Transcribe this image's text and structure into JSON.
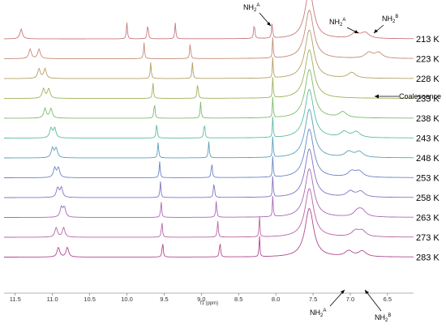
{
  "chart_data": {
    "type": "line",
    "title": "",
    "xlabel": "f1 (ppm)",
    "xlim": [
      11.65,
      6.15
    ],
    "x_reversed": true,
    "x_ticks": [
      "11.5",
      "11.0",
      "10.5",
      "10.0",
      "9.5",
      "9.0",
      "8.5",
      "8.0",
      "7.5",
      "7.0",
      "6.5"
    ],
    "temperatures": [
      "213 K",
      "223 K",
      "228 K",
      "233 K",
      "238 K",
      "243 K",
      "248 K",
      "253 K",
      "258 K",
      "263 K",
      "273 K",
      "283 K"
    ],
    "series_colors": [
      "#c8787c",
      "#c48a78",
      "#b4a064",
      "#9cb45a",
      "#7cbc6c",
      "#5cbca0",
      "#5aa0bc",
      "#6a84c4",
      "#8472c4",
      "#a868b8",
      "#b864a4",
      "#b04890"
    ],
    "peaks": [
      {
        "label": "213 K",
        "shifts": [
          11.42,
          10.0,
          9.72,
          9.35,
          8.29,
          8.05,
          7.55,
          6.93,
          6.8
        ]
      },
      {
        "label": "223 K",
        "shifts": [
          11.3,
          11.18,
          9.77,
          9.15,
          8.04,
          7.55,
          6.75,
          6.62
        ]
      },
      {
        "label": "228 K",
        "shifts": [
          11.18,
          11.1,
          9.68,
          9.12,
          8.04,
          7.55,
          6.98
        ]
      },
      {
        "label": "233 K",
        "shifts": [
          11.12,
          11.05,
          9.65,
          9.05,
          8.04,
          7.55
        ]
      },
      {
        "label": "238 K",
        "shifts": [
          11.1,
          11.02,
          9.63,
          9.01,
          8.04,
          7.55,
          7.1
        ]
      },
      {
        "label": "243 K",
        "shifts": [
          11.02,
          10.97,
          9.6,
          8.96,
          8.04,
          7.55,
          7.08,
          6.92
        ]
      },
      {
        "label": "248 K",
        "shifts": [
          11.0,
          10.95,
          9.58,
          8.9,
          8.04,
          7.55,
          7.02,
          6.88
        ]
      },
      {
        "label": "253 K",
        "shifts": [
          10.97,
          10.92,
          9.56,
          8.86,
          8.04,
          7.55,
          6.98,
          6.88
        ]
      },
      {
        "label": "258 K",
        "shifts": [
          10.93,
          10.88,
          9.55,
          8.83,
          8.04,
          7.55,
          7.0,
          6.86
        ]
      },
      {
        "label": "263 K",
        "shifts": [
          10.88,
          10.84,
          9.54,
          8.8,
          8.04,
          7.55,
          6.9,
          6.84
        ]
      },
      {
        "label": "273 K",
        "shifts": [
          10.95,
          10.85,
          9.53,
          8.78,
          8.22,
          7.55,
          6.93,
          6.84
        ]
      },
      {
        "label": "283 K",
        "shifts": [
          10.92,
          10.8,
          9.52,
          8.75,
          8.22,
          7.55,
          7.02,
          6.84
        ]
      }
    ]
  },
  "annotations": {
    "nh2a_top": {
      "main": "NH",
      "sub": "2",
      "sup": "A"
    },
    "nh2a_right": {
      "main": "NH",
      "sub": "2",
      "sup": "A"
    },
    "nh2b_right": {
      "main": "NH",
      "sub": "2",
      "sup": "B"
    },
    "coalescence": "Coalescence",
    "nh2a_bottom": {
      "main": "NH",
      "sub": "2",
      "sup": "A"
    },
    "nh2b_bottom": {
      "main": "NH",
      "sub": "2",
      "sup": "B"
    }
  }
}
